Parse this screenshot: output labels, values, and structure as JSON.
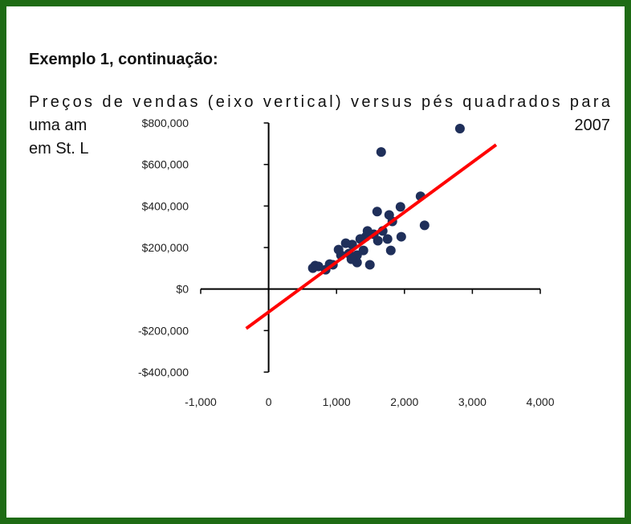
{
  "heading": "Exemplo 1, continuação:",
  "paragraph": {
    "line1": "Preços de vendas (eixo vertical) versus pés quadrados para",
    "line2_start": "uma am",
    "line2_end": "2007",
    "line3_start": "em St. L"
  },
  "chart_data": {
    "type": "scatter",
    "color": "#1f2f5a",
    "x": [
      2817,
      1657,
      1598,
      2237,
      2296,
      1941,
      1775,
      1953,
      1799,
      1491,
      1302,
      1432,
      1550,
      1680,
      1751,
      1349,
      1231,
      1136,
      1183,
      1065,
      947,
      840,
      734,
      686,
      651,
      899,
      1302,
      1396,
      1609,
      1822,
      1219,
      1030,
      1456
    ],
    "values": [
      773000,
      660000,
      373000,
      447000,
      307000,
      396000,
      357000,
      252000,
      186000,
      117000,
      128000,
      252000,
      264000,
      280000,
      241000,
      241000,
      214000,
      221000,
      171000,
      163000,
      117000,
      93000,
      109000,
      113000,
      101000,
      120000,
      163000,
      186000,
      233000,
      326000,
      144000,
      190000,
      280000
    ],
    "trendline": {
      "color": "#ff0000",
      "x": [
        -330,
        3350
      ],
      "values": [
        -190000,
        695000
      ]
    },
    "xlim": [
      -1000,
      4000
    ],
    "xticks": [
      {
        "value": -1000,
        "label": "-1,000"
      },
      0,
      {
        "value": 1000,
        "label": "1,000"
      },
      {
        "value": 2000,
        "label": "2,000"
      },
      {
        "value": 3000,
        "label": "3,000"
      },
      {
        "value": 4000,
        "label": "4,000"
      }
    ],
    "ylim": [
      -400000,
      800000
    ],
    "yticks": [
      {
        "value": -400000,
        "label": "-$400,000"
      },
      {
        "value": -200000,
        "label": "-$200,000"
      },
      {
        "value": 0,
        "label": "$0"
      },
      {
        "value": 200000,
        "label": "$200,000"
      },
      {
        "value": 400000,
        "label": "$400,000"
      },
      {
        "value": 600000,
        "label": "$600,000"
      },
      {
        "value": 800000,
        "label": "$800,000"
      }
    ]
  }
}
